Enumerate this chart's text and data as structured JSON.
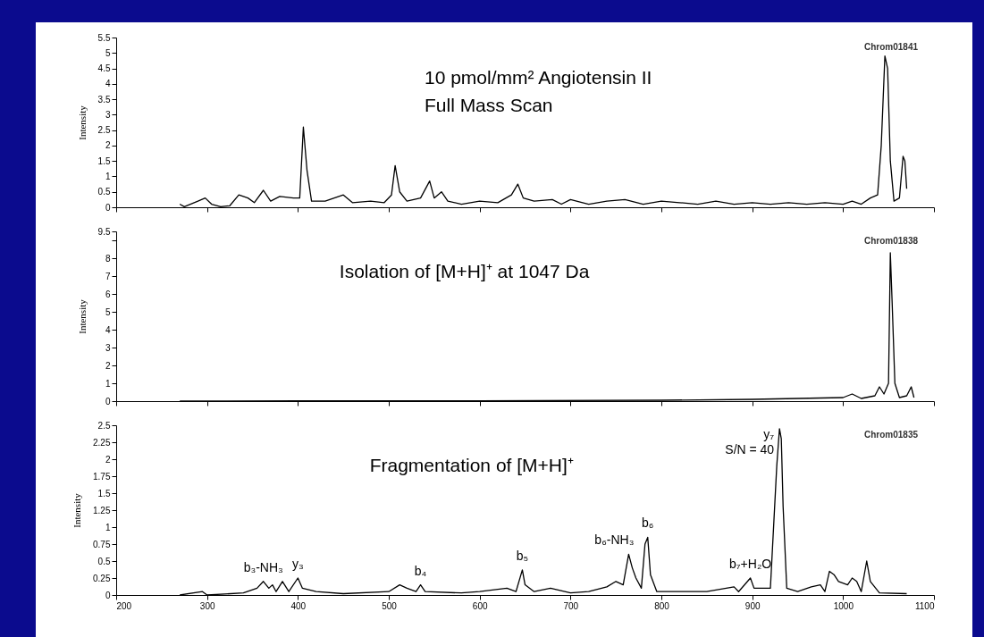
{
  "chart_data": [
    {
      "type": "line",
      "ylabel": "Intensity",
      "xlim": [
        200,
        1100
      ],
      "xticks": [
        200,
        300,
        400,
        500,
        600,
        700,
        800,
        900,
        1000,
        1100
      ],
      "ylim": [
        0,
        5.5
      ],
      "yticks": [
        0,
        0.5,
        1,
        1.5,
        2,
        2.5,
        3,
        3.5,
        4,
        4.5,
        5,
        5.5
      ],
      "tick_labels": "y",
      "x": [
        270,
        275,
        290,
        298,
        305,
        315,
        325,
        335,
        345,
        352,
        362,
        370,
        380,
        395,
        402,
        406,
        410,
        415,
        430,
        450,
        460,
        480,
        495,
        503,
        507,
        512,
        520,
        535,
        545,
        550,
        558,
        565,
        580,
        600,
        620,
        635,
        642,
        648,
        660,
        680,
        690,
        700,
        720,
        740,
        760,
        780,
        800,
        820,
        840,
        860,
        880,
        900,
        920,
        940,
        960,
        980,
        1000,
        1010,
        1020,
        1030,
        1038,
        1042,
        1046,
        1049,
        1052,
        1056,
        1062,
        1066,
        1068,
        1070
      ],
      "series": [
        {
          "color": "#000000",
          "values": [
            0.1,
            0.02,
            0.2,
            0.3,
            0.1,
            0.02,
            0.05,
            0.4,
            0.3,
            0.15,
            0.55,
            0.2,
            0.35,
            0.3,
            0.3,
            2.6,
            1.2,
            0.2,
            0.2,
            0.4,
            0.15,
            0.2,
            0.15,
            0.4,
            1.35,
            0.5,
            0.2,
            0.3,
            0.85,
            0.3,
            0.5,
            0.2,
            0.1,
            0.2,
            0.15,
            0.4,
            0.75,
            0.3,
            0.2,
            0.25,
            0.1,
            0.25,
            0.1,
            0.2,
            0.25,
            0.1,
            0.2,
            0.15,
            0.1,
            0.2,
            0.1,
            0.15,
            0.1,
            0.15,
            0.1,
            0.15,
            0.1,
            0.2,
            0.1,
            0.3,
            0.4,
            2.0,
            4.9,
            4.5,
            1.5,
            0.2,
            0.3,
            1.65,
            1.5,
            0.6
          ]
        }
      ],
      "annotations": [
        "Chrom01841",
        "10 pmol/mm² Angiotensin II",
        "Full Mass Scan"
      ]
    },
    {
      "type": "line",
      "ylabel": "Intensity",
      "xlim": [
        200,
        1100
      ],
      "xticks": [
        200,
        300,
        400,
        500,
        600,
        700,
        800,
        900,
        1000,
        1100
      ],
      "ylim": [
        0,
        9.5
      ],
      "yticks": [
        0,
        1,
        2,
        3,
        4,
        5,
        6,
        7,
        8,
        {
          "value": 9,
          "label": null
        },
        9.5
      ],
      "tick_labels": "y",
      "x": [
        270,
        400,
        600,
        800,
        900,
        950,
        1000,
        1010,
        1020,
        1035,
        1040,
        1045,
        1050,
        1052,
        1054,
        1057,
        1062,
        1070,
        1075,
        1078
      ],
      "series": [
        {
          "color": "#000000",
          "values": [
            0,
            0.02,
            0.02,
            0.05,
            0.1,
            0.15,
            0.2,
            0.4,
            0.15,
            0.3,
            0.8,
            0.4,
            1.0,
            8.3,
            5.5,
            1.0,
            0.2,
            0.3,
            0.8,
            0.2
          ]
        }
      ],
      "annotations": [
        "Chrom01838",
        "Isolation of [M+H]⁺ at 1047 Da"
      ]
    },
    {
      "type": "line",
      "ylabel": "Intensity",
      "xlim": [
        200,
        1100
      ],
      "xticks": [
        200,
        300,
        400,
        500,
        600,
        700,
        800,
        900,
        1000,
        1100
      ],
      "ylim": [
        0,
        2.5
      ],
      "yticks": [
        0,
        0.25,
        0.5,
        0.75,
        1,
        1.25,
        1.5,
        1.75,
        2,
        2.25,
        2.5
      ],
      "x": [
        270,
        295,
        300,
        340,
        355,
        362,
        368,
        372,
        376,
        383,
        390,
        400,
        405,
        420,
        450,
        500,
        512,
        520,
        530,
        535,
        540,
        580,
        600,
        630,
        640,
        647,
        650,
        660,
        678,
        700,
        720,
        740,
        750,
        758,
        764,
        768,
        772,
        778,
        782,
        785,
        788,
        795,
        820,
        850,
        880,
        885,
        898,
        902,
        920,
        927,
        930,
        932,
        934,
        938,
        950,
        965,
        975,
        980,
        985,
        990,
        995,
        1005,
        1010,
        1015,
        1020,
        1026,
        1030,
        1040,
        1070
      ],
      "series": [
        {
          "color": "#000000",
          "values": [
            0,
            0.05,
            0,
            0.03,
            0.1,
            0.2,
            0.1,
            0.15,
            0.05,
            0.2,
            0.05,
            0.25,
            0.1,
            0.05,
            0.02,
            0.05,
            0.15,
            0.1,
            0.05,
            0.15,
            0.05,
            0.03,
            0.05,
            0.1,
            0.05,
            0.37,
            0.15,
            0.05,
            0.1,
            0.03,
            0.05,
            0.12,
            0.2,
            0.15,
            0.6,
            0.4,
            0.25,
            0.1,
            0.75,
            0.85,
            0.3,
            0.05,
            0.05,
            0.05,
            0.12,
            0.05,
            0.25,
            0.1,
            0.1,
            1.9,
            2.45,
            2.3,
            1.3,
            0.1,
            0.05,
            0.12,
            0.15,
            0.05,
            0.35,
            0.3,
            0.2,
            0.15,
            0.25,
            0.2,
            0.05,
            0.5,
            0.2,
            0.03,
            0.02
          ]
        }
      ],
      "annotations": [
        "Chrom01835",
        "Fragmentation of [M+H]⁺",
        {
          "text": "b₃-NH₃",
          "x": 362,
          "y": 0.2
        },
        {
          "text": "y₃",
          "x": 400,
          "y": 0.25
        },
        {
          "text": "b₄",
          "x": 535,
          "y": 0.15
        },
        {
          "text": "b₅",
          "x": 647,
          "y": 0.37
        },
        {
          "text": "b₆-NH₃",
          "x": 764,
          "y": 0.6
        },
        {
          "text": "b₆",
          "x": 785,
          "y": 0.85
        },
        {
          "text": "b₇+H₂O",
          "x": 898,
          "y": 0.25
        },
        {
          "text": "y₇",
          "x": 930,
          "y": 2.45
        },
        {
          "text": "S/N = 40",
          "x": 930,
          "y": 2.45
        }
      ]
    }
  ]
}
